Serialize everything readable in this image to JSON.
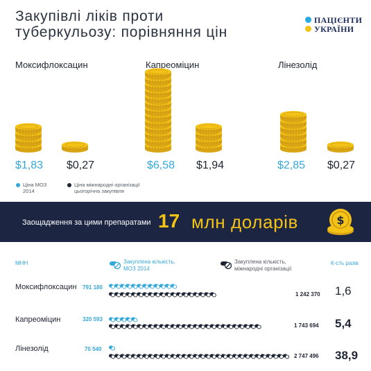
{
  "title": {
    "line1": "Закупівлі ліків проти",
    "line2": "туберкульозу: порівняння цін"
  },
  "logo": {
    "line1": "ПАЦІЄНТИ",
    "line2": "УКРАЇНИ"
  },
  "prices": [
    {
      "drug": "Моксифлоксацин",
      "moz": "$1,83",
      "intl": "$0,27"
    },
    {
      "drug": "Капреоміцин",
      "moz": "$6,58",
      "intl": "$1,94"
    },
    {
      "drug": "Лінезолід",
      "moz": "$2,85",
      "intl": "$0,27"
    }
  ],
  "legend": {
    "moz": [
      "Ціна МОЗ",
      "2014"
    ],
    "intl": [
      "Ціна міжнародні організації",
      "цьогорічна закупівля"
    ]
  },
  "banner": {
    "text": "Заощадження за цими препаратами",
    "number": "17",
    "unit": "млн доларів"
  },
  "table_headers": {
    "mnn": "МНН",
    "moz": [
      "Закуплена кількість,",
      "МОЗ 2014"
    ],
    "intl": [
      "Закуплена кількість,",
      "міжнародні організації"
    ],
    "ratio": "К-сть разів"
  },
  "chart_data": [
    {
      "type": "bar",
      "categories": [
        "Моксифлоксацин",
        "Капреоміцин",
        "Лінезолід"
      ],
      "series": [
        {
          "name": "Ціна МОЗ 2014",
          "values": [
            1.83,
            6.58,
            2.85
          ]
        },
        {
          "name": "Ціна міжнародні організації цьогорічна закупівля",
          "values": [
            0.27,
            1.94,
            0.27
          ]
        }
      ]
    },
    {
      "type": "table",
      "categories": [
        "Моксифлоксацин",
        "Капреоміцин",
        "Лінезолід"
      ],
      "series": [
        {
          "name": "Закуплена кількість, МОЗ 2014",
          "values": [
            791180,
            320593,
            70540
          ]
        },
        {
          "name": "Закуплена кількість, міжнародні організації",
          "values": [
            1242370,
            1743694,
            2747496
          ]
        }
      ],
      "ratio": [
        1.6,
        5.4,
        38.9
      ]
    }
  ],
  "rows": [
    {
      "name": "Моксифлоксацин",
      "moz": "791 180",
      "intl": "1 242 370",
      "ratio": "1,6"
    },
    {
      "name": "Капреоміцин",
      "moz": "320 593",
      "intl": "1 743 694",
      "ratio": "5,4"
    },
    {
      "name": "Лінезолід",
      "moz": "70 540",
      "intl": "2 747 496",
      "ratio": "38,9"
    }
  ],
  "colors": {
    "navy": "#1c2643",
    "blue": "#35a8da",
    "gold": "#f4c318",
    "text": "#1d2433"
  },
  "icons": {
    "coin": "coin-stack-icon",
    "pill": "pill-icon",
    "dollar": "dollar-coin-icon"
  }
}
